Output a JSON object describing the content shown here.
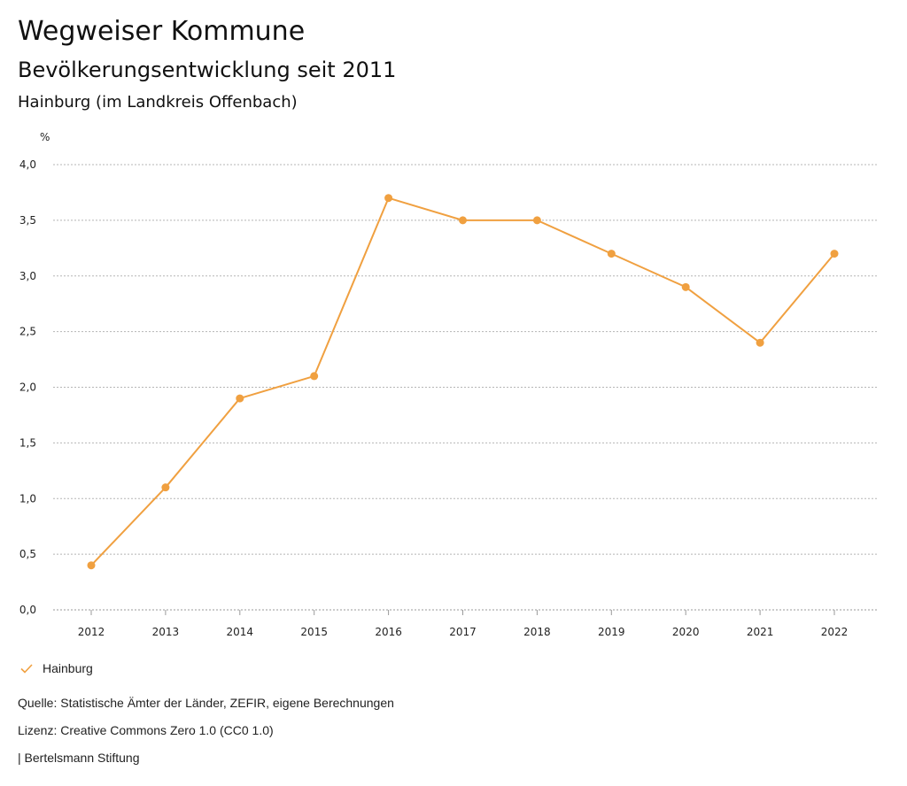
{
  "header": {
    "title": "Wegweiser Kommune",
    "subtitle": "Bevölkerungsentwicklung seit 2011",
    "region": "Hainburg (im Landkreis Offenbach)"
  },
  "chart_data": {
    "type": "line",
    "title": "Bevölkerungsentwicklung seit 2011",
    "xlabel": "",
    "ylabel": "%",
    "ylim": [
      0,
      4
    ],
    "yticks": [
      0,
      0.5,
      1,
      1.5,
      2,
      2.5,
      3,
      3.5,
      4
    ],
    "ytick_labels": [
      "0,0",
      "0,5",
      "1,0",
      "1,5",
      "2,0",
      "2,5",
      "3,0",
      "3,5",
      "4,0"
    ],
    "categories": [
      "2012",
      "2013",
      "2014",
      "2015",
      "2016",
      "2017",
      "2018",
      "2019",
      "2020",
      "2021",
      "2022"
    ],
    "grid": true,
    "legend_position": "bottom-left",
    "series": [
      {
        "name": "Hainburg",
        "color": "#f0a040",
        "values": [
          0.4,
          1.1,
          1.9,
          2.1,
          3.7,
          3.5,
          3.5,
          3.2,
          2.9,
          2.4,
          3.2
        ]
      }
    ]
  },
  "legend": {
    "label": "Hainburg",
    "icon": "check-icon"
  },
  "footer": {
    "source": "Quelle: Statistische Ämter der Länder, ZEFIR, eigene Berechnungen",
    "license": "Lizenz: Creative Commons Zero 1.0 (CC0 1.0)",
    "publisher": "| Bertelsmann Stiftung"
  }
}
